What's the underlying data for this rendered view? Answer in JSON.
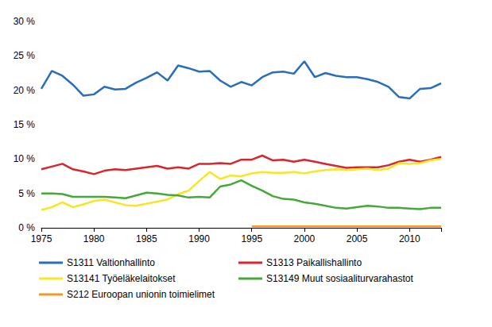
{
  "chart_data": {
    "type": "line",
    "x": [
      1975,
      1976,
      1977,
      1978,
      1979,
      1980,
      1981,
      1982,
      1983,
      1984,
      1985,
      1986,
      1987,
      1988,
      1989,
      1990,
      1991,
      1992,
      1993,
      1994,
      1995,
      1996,
      1997,
      1998,
      1999,
      2000,
      2001,
      2002,
      2003,
      2004,
      2005,
      2006,
      2007,
      2008,
      2009,
      2010,
      2011,
      2012,
      2013
    ],
    "xlim": [
      1975,
      2013
    ],
    "xticks": [
      1975,
      1980,
      1985,
      1990,
      1995,
      2000,
      2005,
      2010
    ],
    "ylim": [
      0,
      30
    ],
    "yticks": [
      {
        "value": 0,
        "label": "0 %"
      },
      {
        "value": 5,
        "label": "5 %"
      },
      {
        "value": 10,
        "label": "10 %"
      },
      {
        "value": 15,
        "label": "15 %"
      },
      {
        "value": 20,
        "label": "20 %"
      },
      {
        "value": 25,
        "label": "25 %"
      },
      {
        "value": 30,
        "label": "30 %"
      }
    ],
    "grid": false,
    "legend": "bottom",
    "series": [
      {
        "name": "S1311 Valtionhallinto",
        "color": "#2a6ebb",
        "values": [
          20.2,
          22.8,
          22.1,
          20.8,
          19.2,
          19.4,
          20.5,
          20.1,
          20.2,
          21.1,
          21.8,
          22.6,
          21.4,
          23.6,
          23.2,
          22.7,
          22.8,
          21.4,
          20.5,
          21.2,
          20.7,
          21.9,
          22.6,
          22.7,
          22.4,
          24.2,
          21.9,
          22.5,
          22.1,
          21.9,
          21.9,
          21.6,
          21.2,
          20.5,
          19.0,
          18.8,
          20.2,
          20.3,
          21.0
        ]
      },
      {
        "name": "S1313 Paikallishallinto",
        "color": "#d7262e",
        "values": [
          8.5,
          8.9,
          9.3,
          8.5,
          8.2,
          7.8,
          8.3,
          8.5,
          8.4,
          8.6,
          8.8,
          9.0,
          8.6,
          8.8,
          8.6,
          9.3,
          9.3,
          9.4,
          9.3,
          9.9,
          9.9,
          10.5,
          9.8,
          9.9,
          9.6,
          9.9,
          9.6,
          9.3,
          9.0,
          8.7,
          8.8,
          8.8,
          8.8,
          9.1,
          9.6,
          9.9,
          9.6,
          9.9,
          10.3
        ]
      },
      {
        "name": "S13141 Työeläkelaitokset",
        "color": "#f7e528",
        "values": [
          2.6,
          3.0,
          3.7,
          3.0,
          3.4,
          3.9,
          4.1,
          3.7,
          3.3,
          3.2,
          3.5,
          3.8,
          4.1,
          4.9,
          5.4,
          6.8,
          8.1,
          7.1,
          7.6,
          7.5,
          7.9,
          8.1,
          8.0,
          8.0,
          8.1,
          7.9,
          8.2,
          8.4,
          8.5,
          8.4,
          8.5,
          8.6,
          8.4,
          8.6,
          9.4,
          9.3,
          9.4,
          9.8,
          10.0
        ]
      },
      {
        "name": "S13149 Muut sosiaaliturvarahastot",
        "color": "#45a83a",
        "values": [
          5.0,
          5.0,
          4.9,
          4.5,
          4.5,
          4.5,
          4.5,
          4.4,
          4.3,
          4.7,
          5.1,
          5.0,
          4.8,
          4.7,
          4.4,
          4.5,
          4.4,
          6.0,
          6.3,
          6.9,
          6.1,
          5.4,
          4.6,
          4.2,
          4.1,
          3.7,
          3.5,
          3.2,
          2.9,
          2.8,
          3.0,
          3.2,
          3.1,
          2.9,
          2.9,
          2.8,
          2.7,
          2.9,
          2.9
        ]
      },
      {
        "name": "S212 Euroopan unionin toimielimet",
        "color": "#f39a22",
        "values": [
          null,
          null,
          null,
          null,
          null,
          null,
          null,
          null,
          null,
          null,
          null,
          null,
          null,
          null,
          null,
          null,
          null,
          null,
          null,
          null,
          0.2,
          0.2,
          0.2,
          0.2,
          0.2,
          0.2,
          0.2,
          0.2,
          0.2,
          0.2,
          0.2,
          0.2,
          0.2,
          0.2,
          0.2,
          0.2,
          0.2,
          0.2,
          0.2
        ]
      }
    ]
  }
}
